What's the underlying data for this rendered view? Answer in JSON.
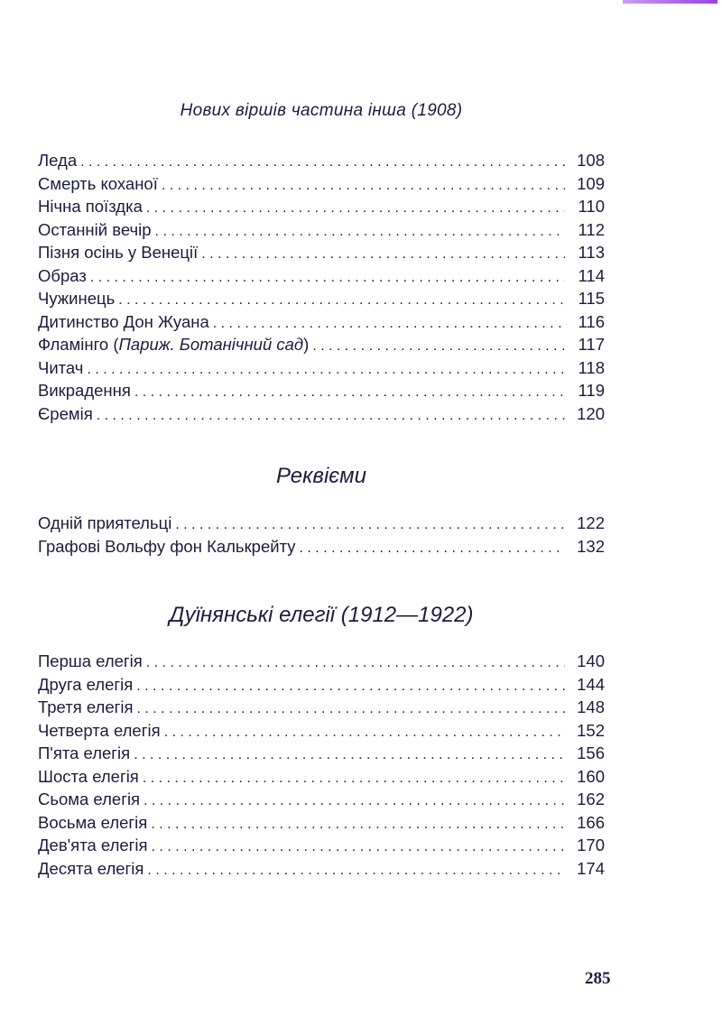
{
  "sections": [
    {
      "heading": "Нових віршів частина інша (1908)",
      "entries": [
        {
          "title": "Леда",
          "page": "108"
        },
        {
          "title": "Смерть коханої",
          "page": "109"
        },
        {
          "title": "Нічна поїздка",
          "page": "110"
        },
        {
          "title": "Останній вечір",
          "page": "112"
        },
        {
          "title": "Пізня осінь у Венеції",
          "page": "113"
        },
        {
          "title": "Образ",
          "page": "114"
        },
        {
          "title": "Чужинець",
          "page": "115"
        },
        {
          "title": "Дитинство Дон Жуана",
          "page": "116"
        },
        {
          "title": "Фламінго (",
          "subtitle": "Париж. Ботанічний сад",
          "close": ")",
          "page": "117"
        },
        {
          "title": "Читач",
          "page": "118"
        },
        {
          "title": "Викрадення",
          "page": "119"
        },
        {
          "title": "Єремія",
          "page": "120"
        }
      ]
    },
    {
      "heading": "Реквієми",
      "entries": [
        {
          "title": "Одній приятельці",
          "page": "122"
        },
        {
          "title": "Графові Вольфу фон Калькрейту",
          "page": "132"
        }
      ]
    },
    {
      "heading": "Дуїнянські елегії (1912—1922)",
      "entries": [
        {
          "title": "Перша елегія",
          "page": "140"
        },
        {
          "title": "Друга елегія",
          "page": "144"
        },
        {
          "title": "Третя елегія",
          "page": "148"
        },
        {
          "title": "Четверта елегія",
          "page": "152"
        },
        {
          "title": "П'ята елегія",
          "page": "156"
        },
        {
          "title": "Шоста елегія",
          "page": "160"
        },
        {
          "title": "Сьома елегія",
          "page": "162"
        },
        {
          "title": "Восьма  елегія",
          "page": "166"
        },
        {
          "title": "Дев'ята  елегія",
          "page": "170"
        },
        {
          "title": "Десята  елегія",
          "page": "174"
        }
      ]
    }
  ],
  "page_number": "285",
  "colors": {
    "text": "#1c1c3e",
    "top_mark": "#9a40e0"
  }
}
